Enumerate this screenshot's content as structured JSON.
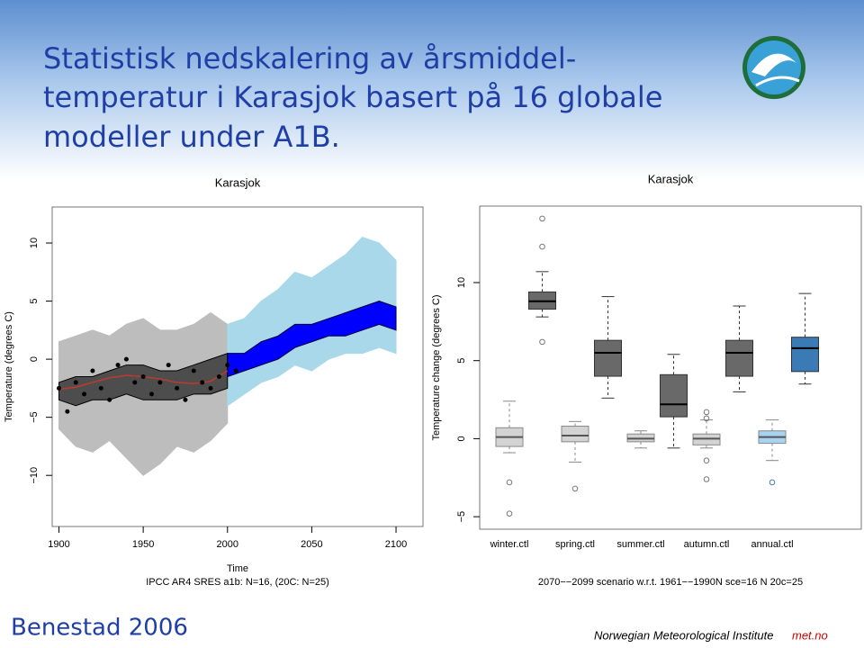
{
  "header": {
    "title": [
      "Statistisk nedskalering av årsmiddel-",
      "temperatur i Karasjok basert på 16 globale",
      "modeller under A1B."
    ]
  },
  "footer": {
    "author": "Benestad 2006",
    "institute": "Norwegian Meteorological Institute",
    "site": "met.no"
  },
  "chart_data": [
    {
      "type": "line",
      "title": "Karasjok",
      "xlabel": "Time",
      "subtitle": "IPCC AR4 SRES a1b: N=16, (20C: N=25)",
      "ylabel": "Temperature (degrees C)",
      "xlim": [
        1896,
        2116
      ],
      "ylim": [
        -14.4,
        13.1
      ],
      "xticks": [
        1900,
        1950,
        2000,
        2050,
        2100
      ],
      "yticks": [
        {
          "value": -10,
          "label": "−10"
        },
        {
          "value": -5,
          "label": "−5"
        },
        0,
        5,
        10
      ],
      "x": [
        1900,
        1910,
        1920,
        1930,
        1940,
        1950,
        1960,
        1970,
        1980,
        1990,
        2000,
        2010,
        2020,
        2030,
        2040,
        2050,
        2060,
        2070,
        2080,
        2090,
        2100
      ],
      "series": [
        {
          "color": "#bdbdbd",
          "edgecolor": "#bdbdbd",
          "upper": [
            1.5,
            2.0,
            2.5,
            2.0,
            3.0,
            3.5,
            2.5,
            2.5,
            3.0,
            4.0,
            3.0,
            null,
            null,
            null,
            null,
            null,
            null,
            null,
            null,
            null,
            null
          ],
          "lower": [
            -6.0,
            -7.5,
            -8.0,
            -7.0,
            -8.5,
            -10.0,
            -9.0,
            -7.5,
            -8.0,
            -7.0,
            -5.5,
            null,
            null,
            null,
            null,
            null,
            null,
            null,
            null,
            null,
            null
          ]
        },
        {
          "color": "#a8d8ea",
          "edgecolor": "#a8d8ea",
          "upper": [
            null,
            null,
            null,
            null,
            null,
            null,
            null,
            null,
            null,
            null,
            3.0,
            3.5,
            5.0,
            6.0,
            7.5,
            7.0,
            8.0,
            9.0,
            10.5,
            10.0,
            8.5
          ],
          "lower": [
            null,
            null,
            null,
            null,
            null,
            null,
            null,
            null,
            null,
            null,
            -4.0,
            -3.0,
            -2.0,
            -1.5,
            -0.5,
            -1.0,
            0.0,
            0.5,
            0.5,
            1.0,
            0.5
          ]
        },
        {
          "color": "#4d4d4d",
          "edgecolor": "#000000",
          "upper": [
            -2.0,
            -1.5,
            -1.5,
            -1.0,
            -0.5,
            -0.5,
            -1.0,
            -1.0,
            -0.5,
            0.0,
            0.5,
            null,
            null,
            null,
            null,
            null,
            null,
            null,
            null,
            null,
            null
          ],
          "lower": [
            -3.5,
            -4.0,
            -3.5,
            -3.5,
            -3.0,
            -3.5,
            -3.5,
            -3.5,
            -3.0,
            -3.0,
            -2.5,
            null,
            null,
            null,
            null,
            null,
            null,
            null,
            null,
            null,
            null
          ]
        },
        {
          "color": "#0000ff",
          "edgecolor": "#000033",
          "upper": [
            null,
            null,
            null,
            null,
            null,
            null,
            null,
            null,
            null,
            null,
            0.5,
            0.5,
            1.5,
            2.0,
            3.0,
            3.0,
            3.5,
            4.0,
            4.5,
            5.0,
            4.5
          ],
          "lower": [
            null,
            null,
            null,
            null,
            null,
            null,
            null,
            null,
            null,
            null,
            -1.5,
            -1.0,
            -0.5,
            0.0,
            1.0,
            1.5,
            2.0,
            2.0,
            2.5,
            3.0,
            2.5
          ]
        },
        {
          "color": "#c0392b",
          "values": [
            -2.6,
            -2.4,
            -2.0,
            -1.6,
            -1.4,
            -1.5,
            -1.7,
            -2.0,
            -2.1,
            -1.9,
            -1.0,
            null,
            null,
            null,
            null,
            null,
            null,
            null,
            null,
            null,
            null
          ]
        },
        {
          "color": "#000000",
          "marker": "circle",
          "x": [
            1900,
            1905,
            1910,
            1915,
            1920,
            1925,
            1930,
            1935,
            1940,
            1945,
            1950,
            1955,
            1960,
            1965,
            1970,
            1975,
            1980,
            1985,
            1990,
            1995,
            2000,
            2005
          ],
          "values": [
            -2.5,
            -4.5,
            -2.0,
            -3.0,
            -1.0,
            -2.5,
            -3.5,
            -0.5,
            0.0,
            -2.0,
            -1.5,
            -3.0,
            -2.0,
            -0.5,
            -2.5,
            -3.5,
            -1.0,
            -2.0,
            -2.5,
            -1.5,
            -0.5,
            -1.0
          ]
        }
      ]
    },
    {
      "type": "box",
      "title": "Karasjok",
      "xlabel": "2070−−2099 scenario w.r.t. 1961−−1990N sce=16 N 20c=25",
      "ylabel": "Temperature change (degrees C)",
      "ylim": [
        -5.8,
        14.9
      ],
      "yticks": [
        {
          "value": -5,
          "label": "−5"
        },
        0,
        5,
        10
      ],
      "categories": [
        "winter.ctl",
        null,
        "spring.ctl",
        null,
        "summer.ctl",
        null,
        "autumn.ctl",
        null,
        "annual.ctl",
        null
      ],
      "boxes": [
        {
          "min": -0.9,
          "q1": -0.5,
          "median": 0.1,
          "q3": 0.7,
          "max": 2.4,
          "outliers": [
            -2.8,
            -4.8
          ],
          "color": "#d3d3d3"
        },
        {
          "min": 7.8,
          "q1": 8.3,
          "median": 8.8,
          "q3": 9.4,
          "max": 10.7,
          "outliers": [
            6.2,
            12.3,
            14.1
          ],
          "color": "#696969"
        },
        {
          "min": -1.5,
          "q1": -0.2,
          "median": 0.2,
          "q3": 0.8,
          "max": 1.1,
          "outliers": [
            -3.2
          ],
          "color": "#d3d3d3"
        },
        {
          "min": 2.6,
          "q1": 4.0,
          "median": 5.5,
          "q3": 6.3,
          "max": 9.1,
          "outliers": [],
          "color": "#696969"
        },
        {
          "min": -0.6,
          "q1": -0.2,
          "median": 0.0,
          "q3": 0.3,
          "max": 0.5,
          "outliers": [],
          "color": "#d3d3d3"
        },
        {
          "min": -0.6,
          "q1": 1.4,
          "median": 2.2,
          "q3": 4.1,
          "max": 5.4,
          "outliers": [],
          "color": "#696969"
        },
        {
          "min": -0.6,
          "q1": -0.4,
          "median": 0.0,
          "q3": 0.3,
          "max": 1.2,
          "outliers": [
            1.7,
            1.3,
            -1.4,
            -2.6
          ],
          "color": "#d3d3d3"
        },
        {
          "min": 3.0,
          "q1": 4.0,
          "median": 5.5,
          "q3": 6.3,
          "max": 8.5,
          "outliers": [],
          "color": "#696969"
        },
        {
          "min": -1.4,
          "q1": -0.3,
          "median": 0.1,
          "q3": 0.5,
          "max": 1.2,
          "outliers": [
            -2.8
          ],
          "color": "#a6d4f0"
        },
        {
          "min": 3.5,
          "q1": 4.3,
          "median": 5.8,
          "q3": 6.5,
          "max": 9.3,
          "outliers": [],
          "color": "#3a7bb5"
        }
      ]
    }
  ]
}
